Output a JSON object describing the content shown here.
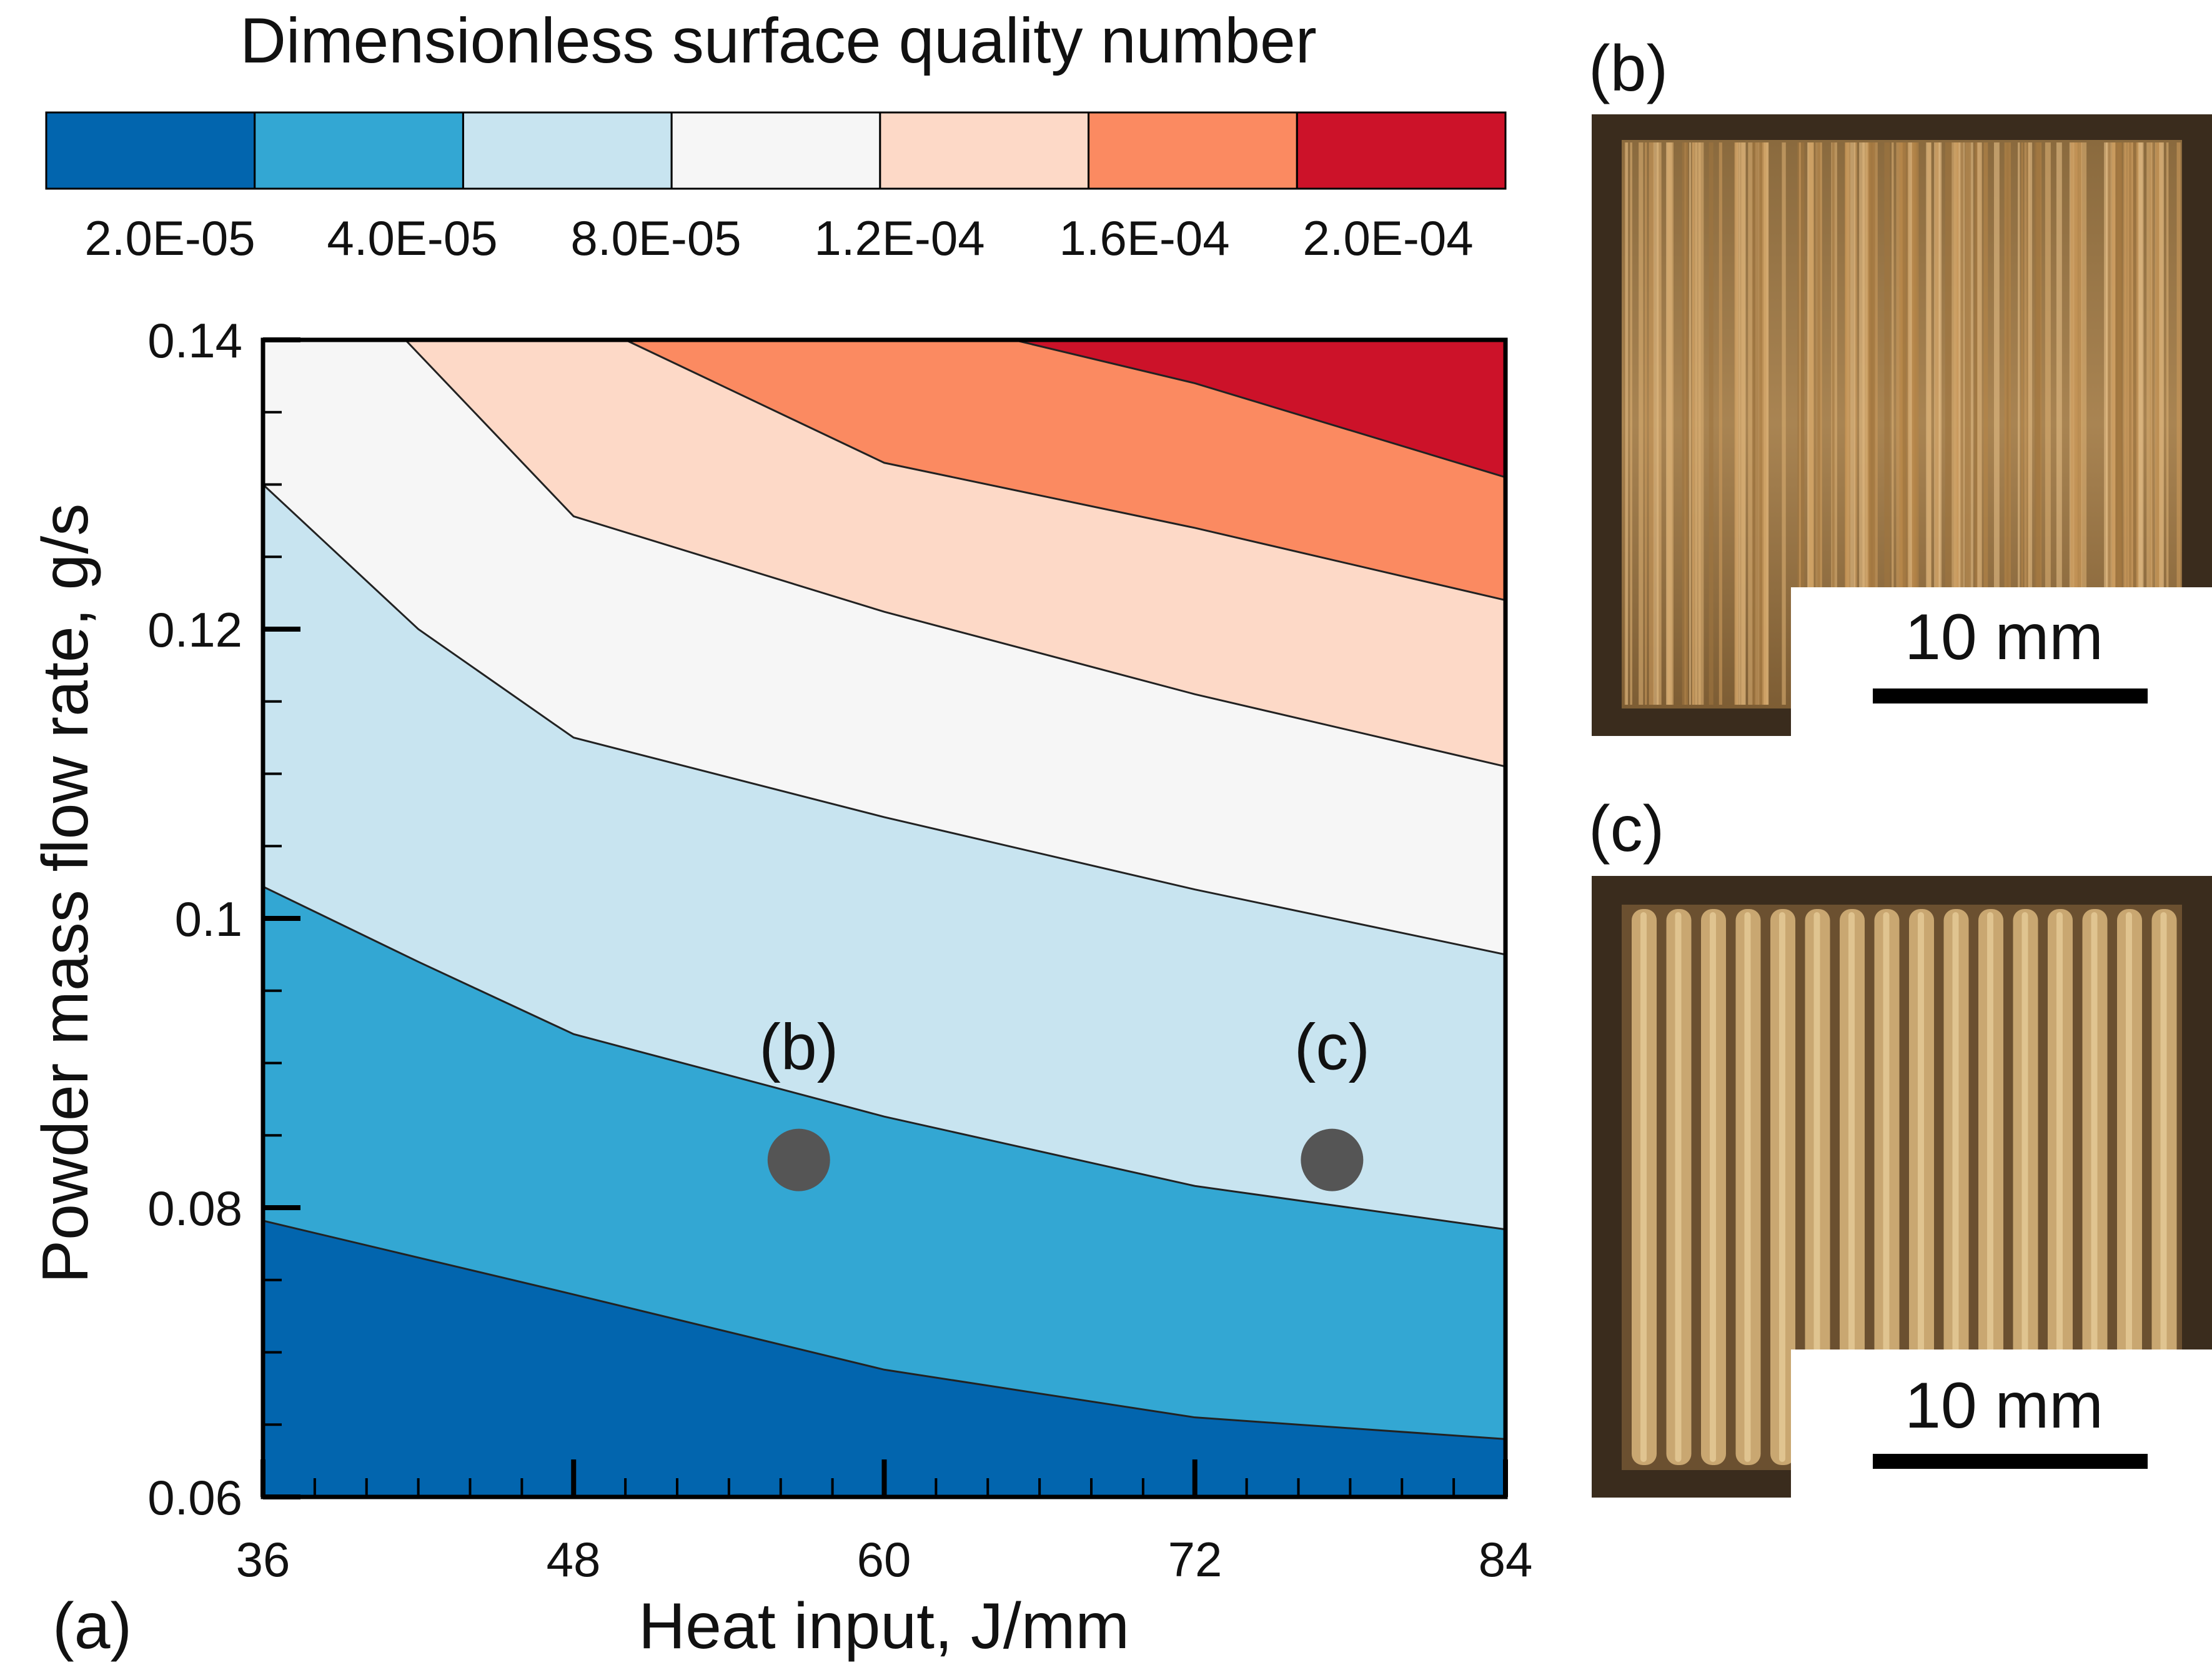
{
  "colorbar": {
    "title": "Dimensionless surface quality number",
    "tick_labels": [
      "2.0E-05",
      "4.0E-05",
      "8.0E-05",
      "1.2E-04",
      "1.6E-04",
      "2.0E-04"
    ],
    "colors": [
      "#0265ae",
      "#33a7d3",
      "#c8e4f0",
      "#f6f6f6",
      "#fdd9c7",
      "#fb8a61",
      "#cc1229"
    ]
  },
  "chart_data": {
    "type": "contour",
    "panel_label": "(a)",
    "xlabel": "Heat input, J/mm",
    "ylabel": "Powder mass flow rate, g/s",
    "xlim": [
      36,
      84
    ],
    "ylim": [
      0.06,
      0.14
    ],
    "x_ticks": [
      36,
      48,
      60,
      72,
      84
    ],
    "x_tick_labels": [
      "36",
      "48",
      "60",
      "72",
      "84"
    ],
    "y_ticks": [
      0.06,
      0.08,
      0.1,
      0.12,
      0.14
    ],
    "y_tick_labels": [
      "0.06",
      "0.08",
      "0.1",
      "0.12",
      "0.14"
    ],
    "contour_levels": [
      2e-05,
      4e-05,
      8e-05,
      0.00012,
      0.00016,
      0.0002
    ],
    "contour_lines": [
      {
        "level": 2e-05,
        "points": [
          [
            36,
            0.0791
          ],
          [
            48,
            0.074
          ],
          [
            60,
            0.0688
          ],
          [
            72,
            0.0655
          ],
          [
            84,
            0.064
          ]
        ]
      },
      {
        "level": 4e-05,
        "points": [
          [
            36,
            0.1022
          ],
          [
            42,
            0.097
          ],
          [
            48,
            0.092
          ],
          [
            60,
            0.0863
          ],
          [
            72,
            0.0815
          ],
          [
            84,
            0.0785
          ]
        ]
      },
      {
        "level": 8e-05,
        "points": [
          [
            36,
            0.13
          ],
          [
            42,
            0.12
          ],
          [
            48,
            0.1125
          ],
          [
            60,
            0.107
          ],
          [
            72,
            0.102
          ],
          [
            84,
            0.0975
          ]
        ]
      },
      {
        "level": 0.00012,
        "points": [
          [
            41.5,
            0.14
          ],
          [
            48,
            0.1278
          ],
          [
            60,
            0.1212
          ],
          [
            72,
            0.1155
          ],
          [
            84,
            0.1105
          ]
        ]
      },
      {
        "level": 0.00016,
        "points": [
          [
            50,
            0.14
          ],
          [
            60,
            0.1315
          ],
          [
            72,
            0.127
          ],
          [
            84,
            0.122
          ]
        ]
      },
      {
        "level": 0.0002,
        "points": [
          [
            65,
            0.14
          ],
          [
            72,
            0.137
          ],
          [
            84,
            0.1305
          ]
        ]
      }
    ],
    "markers": [
      {
        "label": "(b)",
        "x": 56.7,
        "y": 0.0833
      },
      {
        "label": "(c)",
        "x": 77.3,
        "y": 0.0833
      }
    ]
  },
  "photos": [
    {
      "label": "(b)",
      "scale_bar_text": "10 mm",
      "tone": "mixed"
    },
    {
      "label": "(c)",
      "scale_bar_text": "10 mm",
      "tone": "striped"
    }
  ]
}
